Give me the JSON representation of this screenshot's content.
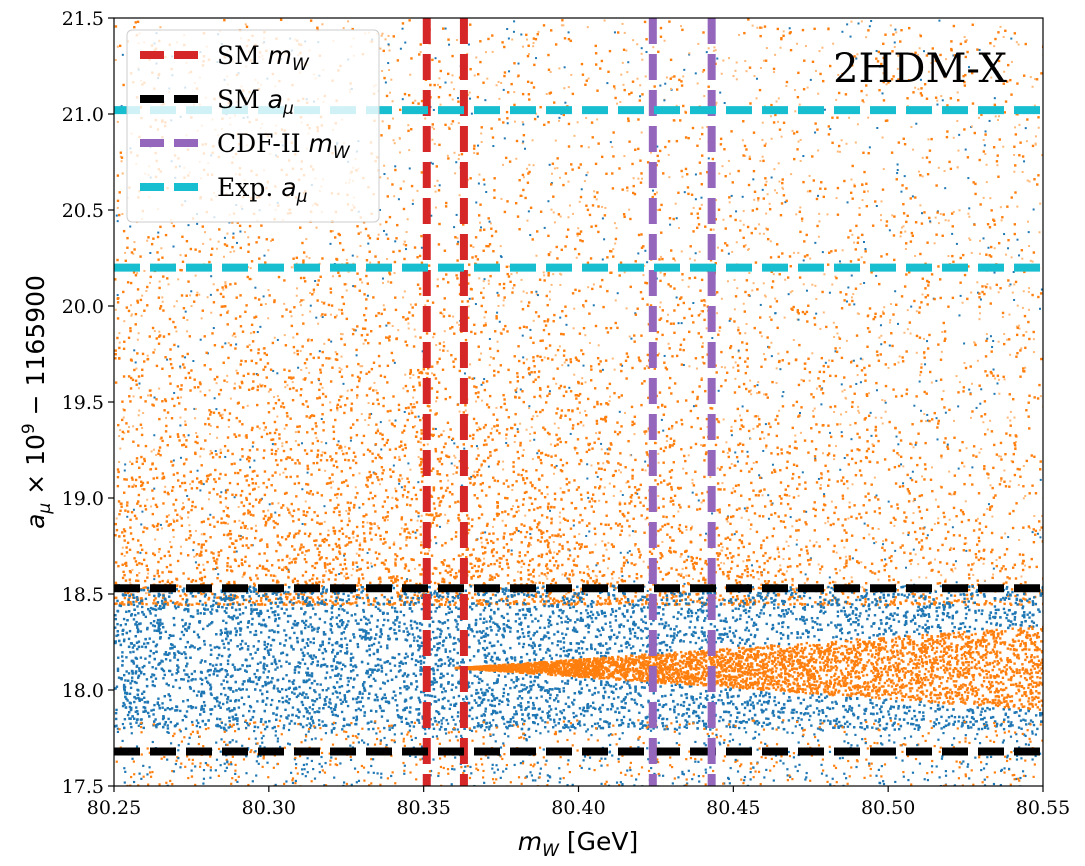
{
  "chart_data": {
    "type": "scatter",
    "title": "",
    "annotation": "2HDM-X",
    "xlabel": "m_W [GeV]",
    "ylabel": "a_μ × 10^9 − 1165900",
    "xlim": [
      80.25,
      80.55
    ],
    "ylim": [
      17.5,
      21.5
    ],
    "x_ticks": [
      "80.25",
      "80.30",
      "80.35",
      "80.40",
      "80.45",
      "80.50",
      "80.55"
    ],
    "y_ticks": [
      "17.5",
      "18.0",
      "18.5",
      "19.0",
      "19.5",
      "20.0",
      "20.5",
      "21.0",
      "21.5"
    ],
    "grid": false,
    "legend_position": "top-left",
    "scatter_colors": {
      "blue": "#1f77b4",
      "orange": "#ff7f0e"
    },
    "scatter_regions": {
      "blue_band": {
        "y_min": 17.8,
        "y_max": 18.55
      },
      "orange_wedge": {
        "x_start": 80.36,
        "y_center": 18.12,
        "half_width_at_x_end": 0.22,
        "x_end": 80.55
      },
      "orange_density_peak": {
        "x": 80.33,
        "y": 19.0
      }
    },
    "reference_lines": [
      {
        "label": "SM m_W",
        "orientation": "vertical",
        "values": [
          80.351,
          80.363
        ],
        "color": "#d62728"
      },
      {
        "label": "SM a_μ",
        "orientation": "horizontal",
        "values": [
          17.68,
          18.53
        ],
        "color": "#000000"
      },
      {
        "label": "CDF-II m_W",
        "orientation": "vertical",
        "values": [
          80.424,
          80.443
        ],
        "color": "#9467bd"
      },
      {
        "label": "Exp. a_μ",
        "orientation": "horizontal",
        "values": [
          20.2,
          21.02
        ],
        "color": "#17becf"
      }
    ]
  }
}
